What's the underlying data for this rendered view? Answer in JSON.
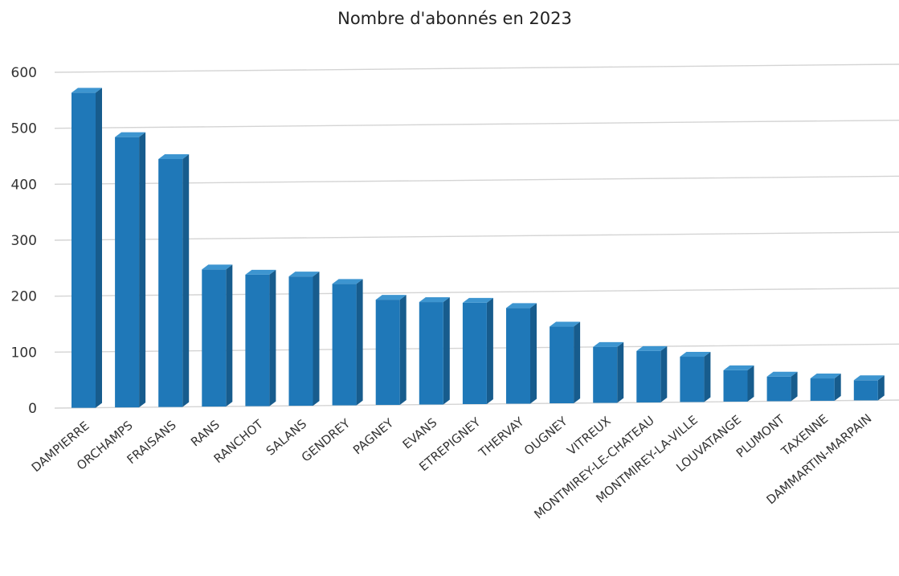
{
  "chart_data": {
    "type": "bar",
    "title": "Nombre d'abonnés en 2023",
    "xlabel": "",
    "ylabel": "",
    "ylim": [
      0,
      600
    ],
    "yticks": [
      0,
      100,
      200,
      300,
      400,
      500,
      600
    ],
    "grid": true,
    "legend": "none",
    "bar_color": "#1f78b8",
    "bar_top_color": "#3d95d0",
    "bar_side_color": "#175c8d",
    "categories": [
      "DAMPIERRE",
      "ORCHAMPS",
      "FRAISANS",
      "RANS",
      "RANCHOT",
      "SALANS",
      "GENDREY",
      "PAGNEY",
      "EVANS",
      "ETREPIGNEY",
      "THERVAY",
      "OUGNEY",
      "VITREUX",
      "MONTMIREY-LE-CHATEAU",
      "MONTMIREY-LA-VILLE",
      "LOUVATANGE",
      "PLUMONT",
      "TAXENNE",
      "DAMMARTIN-MARPAIN"
    ],
    "values": [
      563,
      483,
      443,
      245,
      235,
      231,
      217,
      188,
      183,
      181,
      171,
      137,
      100,
      92,
      81,
      56,
      44,
      40,
      36
    ]
  }
}
